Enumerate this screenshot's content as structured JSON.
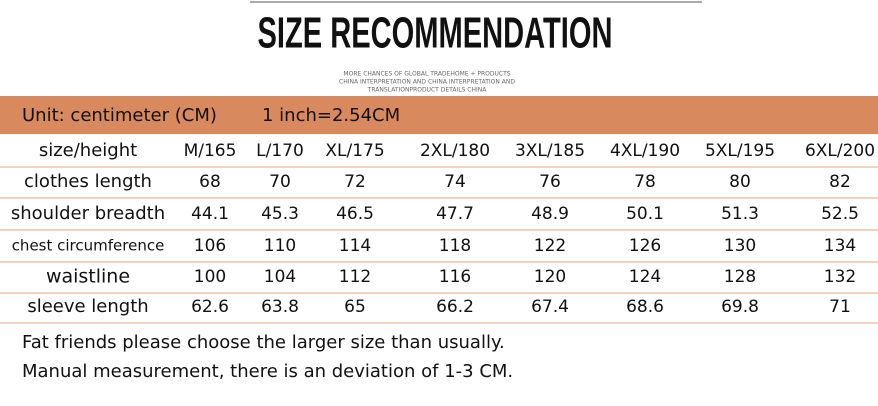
{
  "title": "SIZE RECOMMENDATION",
  "subtitle": [
    "MORE CHANCES OF GLOBAL TRADEHOME + PRODUCTS",
    "CHINA INTERPRETATION AND CHINA INTERPRETATION AND",
    "TRANSLATIONPRODUCT DETAILS CHINA"
  ],
  "unit_bar": {
    "unit": "Unit: centimeter (CM)",
    "conversion": "1 inch=2.54CM"
  },
  "table": {
    "header": [
      "size/height",
      "M/165",
      "L/170",
      "XL/175",
      "2XL/180",
      "3XL/185",
      "4XL/190",
      "5XL/195",
      "6XL/200"
    ],
    "rows": [
      [
        "clothes length",
        "68",
        "70",
        "72",
        "74",
        "76",
        "78",
        "80",
        "82"
      ],
      [
        "shoulder breadth",
        "44.1",
        "45.3",
        "46.5",
        "47.7",
        "48.9",
        "50.1",
        "51.3",
        "52.5"
      ],
      [
        "chest circumference",
        "106",
        "110",
        "114",
        "118",
        "122",
        "126",
        "130",
        "134"
      ],
      [
        "waistline",
        "100",
        "104",
        "112",
        "116",
        "120",
        "124",
        "128",
        "132"
      ],
      [
        "sleeve length",
        "62.6",
        "63.8",
        "65",
        "66.2",
        "67.4",
        "68.6",
        "69.8",
        "71"
      ]
    ]
  },
  "notes": [
    "Fat friends please choose the larger size than usually.",
    "Manual measurement, there is an deviation of 1-3 CM."
  ]
}
